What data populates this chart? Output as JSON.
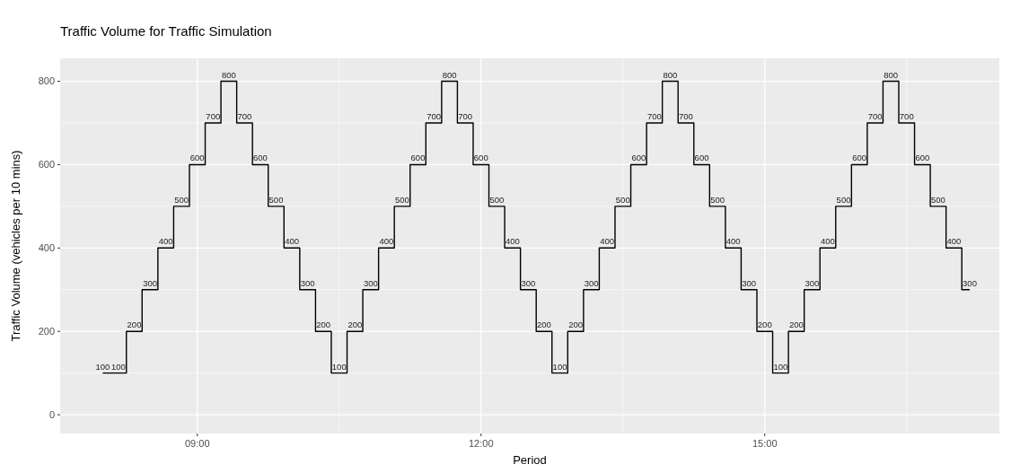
{
  "chart_data": {
    "type": "step",
    "title": "Traffic Volume for Traffic Simulation",
    "xlabel": "Period",
    "ylabel": "Traffic Volume (vehicles per 10 mins)",
    "x": [
      8,
      8.1667,
      8.3333,
      8.5,
      8.6667,
      8.8333,
      9,
      9.1667,
      9.3333,
      9.5,
      9.6667,
      9.8333,
      10,
      10.1667,
      10.3333,
      10.5,
      10.6667,
      10.8333,
      11,
      11.1667,
      11.3333,
      11.5,
      11.6667,
      11.8333,
      12,
      12.1667,
      12.3333,
      12.5,
      12.6667,
      12.8333,
      13,
      13.1667,
      13.3333,
      13.5,
      13.6667,
      13.8333,
      14,
      14.1667,
      14.3333,
      14.5,
      14.6667,
      14.8333,
      15,
      15.1667,
      15.3333,
      15.5,
      15.6667,
      15.8333,
      16,
      16.1667,
      16.3333,
      16.5,
      16.6667,
      16.8333,
      17,
      17.1667
    ],
    "series": [
      {
        "color": "#000000",
        "values": [
          100,
          100,
          200,
          300,
          400,
          500,
          600,
          700,
          800,
          700,
          600,
          500,
          400,
          300,
          200,
          100,
          200,
          300,
          400,
          500,
          600,
          700,
          800,
          700,
          600,
          500,
          400,
          300,
          200,
          100,
          200,
          300,
          400,
          500,
          600,
          700,
          800,
          700,
          600,
          500,
          400,
          300,
          200,
          100,
          200,
          300,
          400,
          500,
          600,
          700,
          800,
          700,
          600,
          500,
          400,
          300
        ]
      }
    ],
    "data_labels": true,
    "grid": true,
    "xlim": [
      7.55,
      17.48
    ],
    "xticks": [
      {
        "value": 9,
        "label": "09:00"
      },
      {
        "value": 12,
        "label": "12:00"
      },
      {
        "value": 15,
        "label": "15:00"
      }
    ],
    "ylim": [
      -45,
      855
    ],
    "yticks": [
      0,
      200,
      400,
      600,
      800
    ]
  }
}
